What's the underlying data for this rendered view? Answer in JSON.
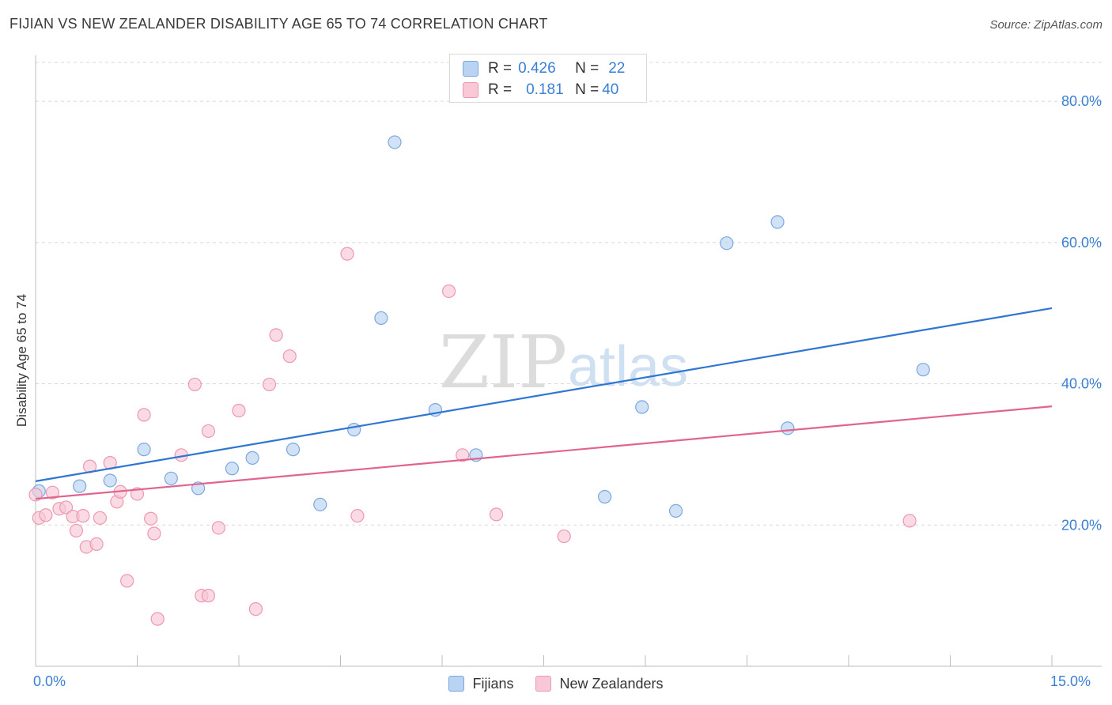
{
  "header": {
    "title": "FIJIAN VS NEW ZEALANDER DISABILITY AGE 65 TO 74 CORRELATION CHART",
    "source": "Source: ZipAtlas.com"
  },
  "legend_top": {
    "rows": [
      {
        "r_label": "R =",
        "r_value": "0.426",
        "n_label": "N =",
        "n_value": "22"
      },
      {
        "r_label": "R =",
        "r_value": "0.181",
        "n_label": "N =",
        "n_value": "40"
      }
    ]
  },
  "colors": {
    "fijians_fill": "#b9d3f3",
    "fijians_stroke": "#7ba7de",
    "fijians_line": "#2f75d2",
    "nz_fill": "#f8c8d6",
    "nz_stroke": "#ee97b2",
    "nz_line": "#e0648e",
    "grid": "#d8d8d8",
    "axis_text": "#3b7fd4"
  },
  "watermark": {
    "zip": "ZIP",
    "atlas": "atlas"
  },
  "chart_data": {
    "type": "scatter",
    "title": "FIJIAN VS NEW ZEALANDER DISABILITY AGE 65 TO 74 CORRELATION CHART",
    "xlabel": "",
    "ylabel": "Disability Age 65 to 74",
    "xlim": [
      0,
      15
    ],
    "ylim": [
      0,
      86.5
    ],
    "x_tick_labels": [
      "0.0%",
      "15.0%"
    ],
    "y_ticks": [
      20,
      40,
      60,
      80
    ],
    "y_tick_labels": [
      "20.0%",
      "40.0%",
      "60.0%",
      "80.0%"
    ],
    "grid": true,
    "legend_placement": "bottom-center",
    "series": [
      {
        "name": "Fijians",
        "points": [
          [
            0.05,
            24.8
          ],
          [
            0.65,
            25.5
          ],
          [
            1.1,
            26.3
          ],
          [
            1.6,
            30.7
          ],
          [
            2.0,
            26.6
          ],
          [
            2.4,
            25.2
          ],
          [
            2.9,
            28.0
          ],
          [
            3.2,
            29.5
          ],
          [
            3.8,
            30.7
          ],
          [
            4.2,
            22.9
          ],
          [
            4.7,
            33.5
          ],
          [
            5.1,
            49.3
          ],
          [
            5.3,
            74.2
          ],
          [
            5.9,
            36.3
          ],
          [
            6.5,
            29.9
          ],
          [
            8.4,
            24.0
          ],
          [
            8.95,
            36.7
          ],
          [
            9.45,
            22.0
          ],
          [
            10.2,
            59.9
          ],
          [
            10.95,
            62.9
          ],
          [
            11.1,
            33.7
          ],
          [
            13.1,
            42.0
          ]
        ],
        "trend": {
          "x": [
            0,
            15
          ],
          "y": [
            26.2,
            50.7
          ]
        }
      },
      {
        "name": "New Zealanders",
        "points": [
          [
            0.0,
            24.3
          ],
          [
            0.05,
            21.0
          ],
          [
            0.15,
            21.4
          ],
          [
            0.25,
            24.6
          ],
          [
            0.35,
            22.3
          ],
          [
            0.45,
            22.5
          ],
          [
            0.55,
            21.2
          ],
          [
            0.6,
            19.2
          ],
          [
            0.7,
            21.3
          ],
          [
            0.75,
            16.9
          ],
          [
            0.8,
            28.3
          ],
          [
            0.9,
            17.3
          ],
          [
            0.95,
            21.0
          ],
          [
            1.1,
            28.8
          ],
          [
            1.2,
            23.3
          ],
          [
            1.25,
            24.7
          ],
          [
            1.35,
            12.1
          ],
          [
            1.5,
            24.4
          ],
          [
            1.6,
            35.6
          ],
          [
            1.7,
            20.9
          ],
          [
            1.75,
            18.8
          ],
          [
            1.8,
            6.7
          ],
          [
            2.15,
            29.9
          ],
          [
            2.35,
            39.9
          ],
          [
            2.45,
            10.0
          ],
          [
            2.55,
            33.3
          ],
          [
            2.55,
            10.0
          ],
          [
            2.7,
            19.6
          ],
          [
            3.0,
            36.2
          ],
          [
            3.25,
            8.1
          ],
          [
            3.45,
            39.9
          ],
          [
            3.55,
            46.9
          ],
          [
            3.75,
            43.9
          ],
          [
            4.6,
            58.4
          ],
          [
            4.75,
            21.3
          ],
          [
            6.1,
            53.1
          ],
          [
            6.3,
            29.9
          ],
          [
            6.8,
            21.5
          ],
          [
            7.8,
            18.4
          ],
          [
            12.9,
            20.6
          ]
        ],
        "trend": {
          "x": [
            0,
            15
          ],
          "y": [
            23.7,
            36.8
          ]
        }
      }
    ]
  },
  "bottom_legend": [
    {
      "label": "Fijians"
    },
    {
      "label": "New Zealanders"
    }
  ]
}
